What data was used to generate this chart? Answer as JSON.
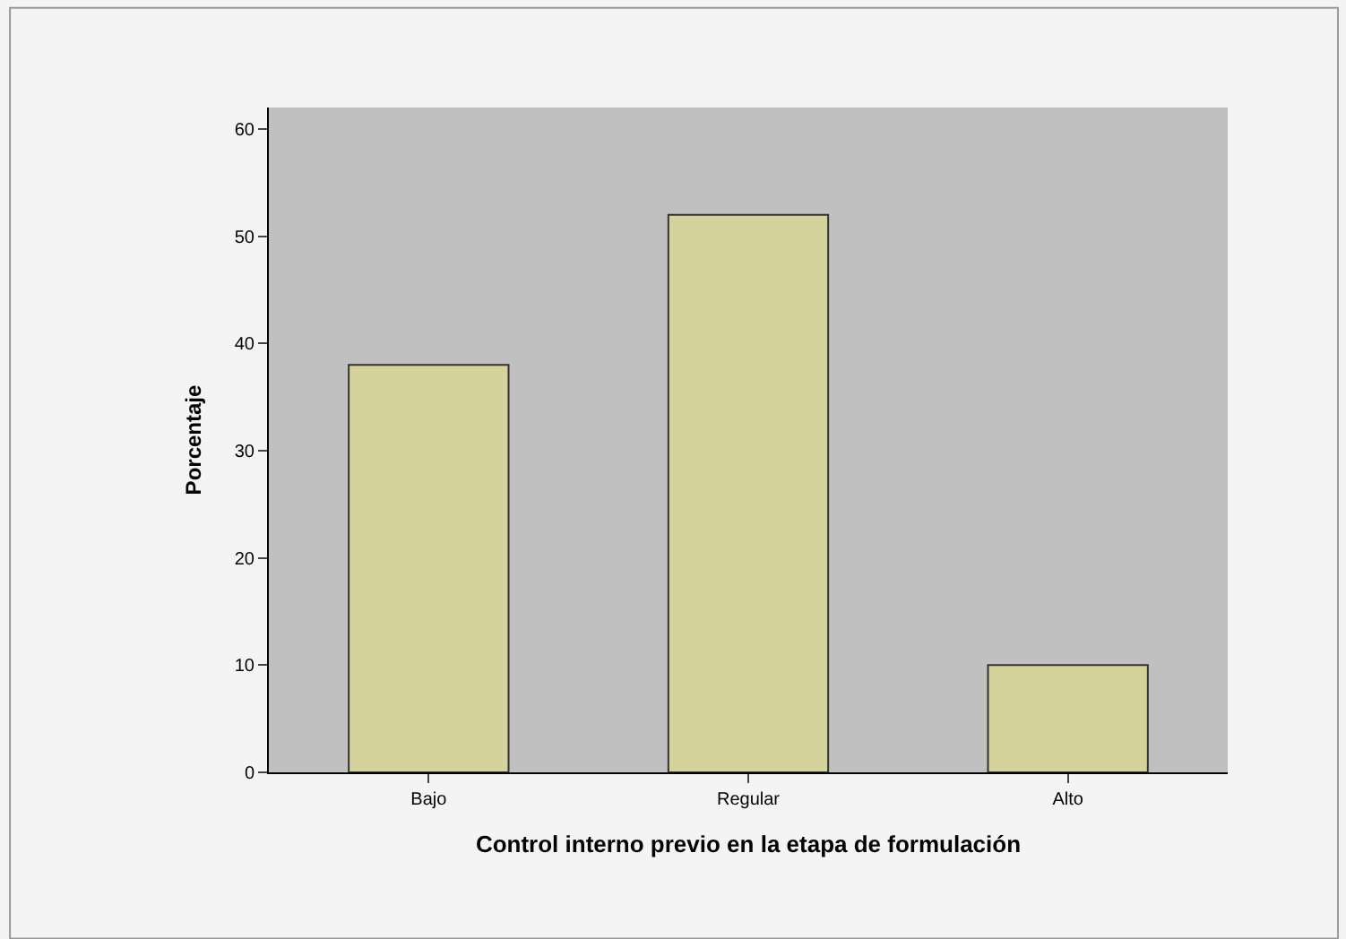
{
  "chart_data": {
    "type": "bar",
    "xlabel": "Control interno previo en la etapa de formulación",
    "ylabel": "Porcentaje",
    "categories": [
      "Bajo",
      "Regular",
      "Alto"
    ],
    "values": [
      38,
      52,
      10
    ],
    "color": "#d5d29c",
    "ylim": [
      0,
      62
    ],
    "yticks": [
      0,
      10,
      20,
      30,
      40,
      50,
      60
    ],
    "grid": false
  }
}
